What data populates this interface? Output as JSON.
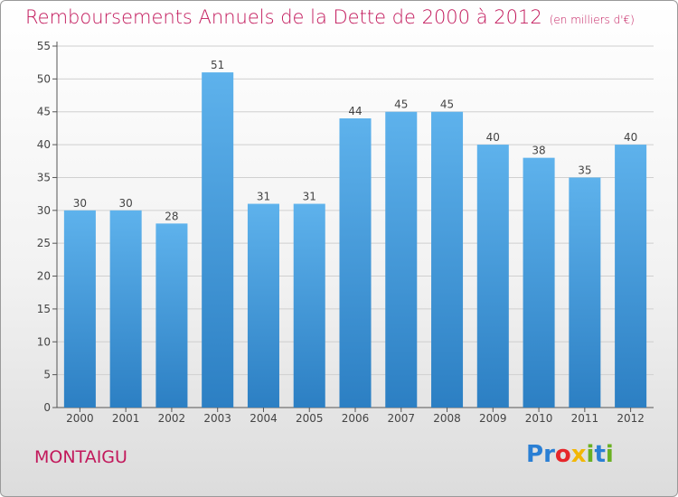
{
  "header": {
    "title": "Remboursements Annuels de la Dette de 2000 à 2012",
    "unit": "(en milliers d'€)"
  },
  "footer": {
    "city": "MONTAIGU",
    "logo_letters": [
      {
        "ch": "P",
        "color": "#2a7fd4"
      },
      {
        "ch": "r",
        "color": "#2a7fd4"
      },
      {
        "ch": "o",
        "color": "#e6262a"
      },
      {
        "ch": "x",
        "color": "#f2b705"
      },
      {
        "ch": "i",
        "color": "#6ab023"
      },
      {
        "ch": "t",
        "color": "#2a7fd4"
      },
      {
        "ch": "i",
        "color": "#6ab023"
      }
    ]
  },
  "colors": {
    "title": "#c2185b",
    "bar_top": "#5eb2ec",
    "bar_bottom": "#2c7fc3",
    "axis": "#555555",
    "grid": "#d0d0d0"
  },
  "chart_data": {
    "type": "bar",
    "title": "Remboursements Annuels de la Dette de 2000 à 2012",
    "categories": [
      "2000",
      "2001",
      "2002",
      "2003",
      "2004",
      "2005",
      "2006",
      "2007",
      "2008",
      "2009",
      "2010",
      "2011",
      "2012"
    ],
    "values": [
      30,
      30,
      28,
      51,
      31,
      31,
      44,
      45,
      45,
      40,
      38,
      35,
      40
    ],
    "ylim": [
      0,
      55
    ],
    "yticks": [
      0,
      5,
      10,
      15,
      20,
      25,
      30,
      35,
      40,
      45,
      50,
      55
    ],
    "grid": true,
    "data_labels": true
  }
}
